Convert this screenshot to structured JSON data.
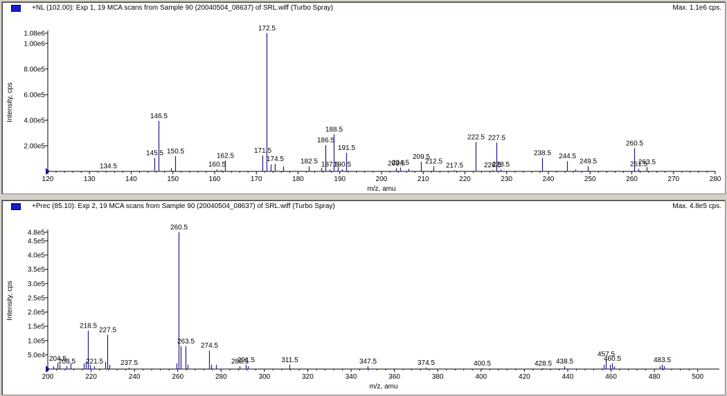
{
  "colors": {
    "peak": "#1a1a8c",
    "marker": "#1a1acf",
    "axis": "#000000",
    "background": "#ffffff"
  },
  "chart_data": [
    {
      "type": "bar",
      "title": "+NL (102.00): Exp 1, 19 MCA scans from Sample 90 (20040504_08637) of SRL.wiff (Turbo Spray)",
      "max_label": "Max. 1.1e6 cps.",
      "xlabel": "m/z, amu",
      "ylabel": "Intensity, cps",
      "xlim": [
        120,
        280
      ],
      "ylim": [
        0,
        1080000.0
      ],
      "x_ticks": [
        {
          "v": 120,
          "t": "120"
        },
        {
          "v": 130,
          "t": "130"
        },
        {
          "v": 140,
          "t": "140"
        },
        {
          "v": 150,
          "t": "150"
        },
        {
          "v": 160,
          "t": "160"
        },
        {
          "v": 170,
          "t": "170"
        },
        {
          "v": 180,
          "t": "180"
        },
        {
          "v": 190,
          "t": "190"
        },
        {
          "v": 200,
          "t": "200"
        },
        {
          "v": 210,
          "t": "210"
        },
        {
          "v": 220,
          "t": "220"
        },
        {
          "v": 230,
          "t": "230"
        },
        {
          "v": 240,
          "t": "240"
        },
        {
          "v": 250,
          "t": "250"
        },
        {
          "v": 260,
          "t": "260"
        },
        {
          "v": 270,
          "t": "270"
        },
        {
          "v": 280,
          "t": "280"
        }
      ],
      "y_ticks": [
        {
          "v": 200000,
          "t": "2.00e5"
        },
        {
          "v": 400000,
          "t": "4.00e5"
        },
        {
          "v": 600000,
          "t": "6.00e5"
        },
        {
          "v": 800000,
          "t": "8.00e5"
        },
        {
          "v": 1000000,
          "t": "1.00e6"
        },
        {
          "v": 1080000,
          "t": "1.08e6"
        }
      ],
      "peaks": [
        {
          "x": 134.5,
          "y": 3000,
          "label": "134.5"
        },
        {
          "x": 145.5,
          "y": 105000,
          "label": "145.5"
        },
        {
          "x": 146.5,
          "y": 395000,
          "label": "146.5"
        },
        {
          "x": 149.5,
          "y": 25000
        },
        {
          "x": 150.5,
          "y": 120000,
          "label": "150.5"
        },
        {
          "x": 160.5,
          "y": 15000,
          "label": "160.5"
        },
        {
          "x": 161.5,
          "y": 10000
        },
        {
          "x": 162.5,
          "y": 85000,
          "label": "162.5"
        },
        {
          "x": 171.5,
          "y": 125000,
          "label": "171.5"
        },
        {
          "x": 172.5,
          "y": 1080000,
          "label": "172.5"
        },
        {
          "x": 173.5,
          "y": 55000
        },
        {
          "x": 174.5,
          "y": 60000,
          "label": "174.5"
        },
        {
          "x": 176.5,
          "y": 40000
        },
        {
          "x": 182.5,
          "y": 40000,
          "label": "182.5"
        },
        {
          "x": 185.5,
          "y": 30000
        },
        {
          "x": 186.5,
          "y": 205000,
          "label": "186.5"
        },
        {
          "x": 187.5,
          "y": 15000,
          "label": "187.5"
        },
        {
          "x": 188.5,
          "y": 290000,
          "label": "188.5"
        },
        {
          "x": 189.5,
          "y": 35000
        },
        {
          "x": 190.5,
          "y": 15000,
          "label": "190.5"
        },
        {
          "x": 191.5,
          "y": 145000,
          "label": "191.5"
        },
        {
          "x": 203.5,
          "y": 25000,
          "label": "203.5"
        },
        {
          "x": 204.5,
          "y": 30000,
          "label": "204.5"
        },
        {
          "x": 206.5,
          "y": 20000
        },
        {
          "x": 209.5,
          "y": 75000,
          "label": "209.5"
        },
        {
          "x": 212.5,
          "y": 40000,
          "label": "212.5"
        },
        {
          "x": 217.5,
          "y": 8000,
          "label": "217.5"
        },
        {
          "x": 222.5,
          "y": 230000,
          "label": "222.5"
        },
        {
          "x": 226.5,
          "y": 10000,
          "label": "226.5"
        },
        {
          "x": 227.5,
          "y": 225000,
          "label": "227.5"
        },
        {
          "x": 228.5,
          "y": 15000,
          "label": "228.5"
        },
        {
          "x": 238.5,
          "y": 105000,
          "label": "238.5"
        },
        {
          "x": 244.5,
          "y": 80000,
          "label": "244.5"
        },
        {
          "x": 246.5,
          "y": 15000
        },
        {
          "x": 249.5,
          "y": 40000,
          "label": "249.5"
        },
        {
          "x": 260.5,
          "y": 180000,
          "label": "260.5"
        },
        {
          "x": 261.5,
          "y": 20000,
          "label": "261.5"
        },
        {
          "x": 263.5,
          "y": 35000,
          "label": "263.5"
        }
      ]
    },
    {
      "type": "bar",
      "title": "+Prec (85.10): Exp 2, 19 MCA scans from Sample 90 (20040504_08637) of SRL.wiff (Turbo Spray)",
      "max_label": "Max. 4.8e5 cps.",
      "xlabel": "m/z, amu",
      "ylabel": "Intensity, cps",
      "xlim": [
        200,
        510
      ],
      "ylim": [
        0,
        480000
      ],
      "x_ticks": [
        {
          "v": 200,
          "t": "200"
        },
        {
          "v": 220,
          "t": "220"
        },
        {
          "v": 240,
          "t": "240"
        },
        {
          "v": 260,
          "t": "260"
        },
        {
          "v": 280,
          "t": "280"
        },
        {
          "v": 300,
          "t": "300"
        },
        {
          "v": 320,
          "t": "320"
        },
        {
          "v": 340,
          "t": "340"
        },
        {
          "v": 360,
          "t": "360"
        },
        {
          "v": 380,
          "t": "380"
        },
        {
          "v": 400,
          "t": "400"
        },
        {
          "v": 420,
          "t": "420"
        },
        {
          "v": 440,
          "t": "440"
        },
        {
          "v": 460,
          "t": "460"
        },
        {
          "v": 480,
          "t": "480"
        },
        {
          "v": 500,
          "t": "500"
        }
      ],
      "y_ticks": [
        {
          "v": 50000,
          "t": "5.0e4"
        },
        {
          "v": 100000,
          "t": "1.0e5"
        },
        {
          "v": 150000,
          "t": "1.5e5"
        },
        {
          "v": 200000,
          "t": "2.0e5"
        },
        {
          "v": 250000,
          "t": "2.5e5"
        },
        {
          "v": 300000,
          "t": "3.0e5"
        },
        {
          "v": 350000,
          "t": "3.5e5"
        },
        {
          "v": 400000,
          "t": "4.0e5"
        },
        {
          "v": 450000,
          "t": "4.5e5"
        },
        {
          "v": 480000,
          "t": "4.8e5"
        }
      ],
      "peaks": [
        {
          "x": 202.5,
          "y": 10000
        },
        {
          "x": 204.5,
          "y": 20000,
          "label": "204.5"
        },
        {
          "x": 205.5,
          "y": 15000
        },
        {
          "x": 208.5,
          "y": 10000,
          "label": "208.5"
        },
        {
          "x": 210.5,
          "y": 20000
        },
        {
          "x": 216.5,
          "y": 20000
        },
        {
          "x": 217.5,
          "y": 25000
        },
        {
          "x": 218.5,
          "y": 135000,
          "label": "218.5"
        },
        {
          "x": 219.5,
          "y": 15000
        },
        {
          "x": 221.5,
          "y": 10000,
          "label": "221.5"
        },
        {
          "x": 226.5,
          "y": 25000
        },
        {
          "x": 227.5,
          "y": 120000,
          "label": "227.5"
        },
        {
          "x": 228.5,
          "y": 15000
        },
        {
          "x": 237.5,
          "y": 5000,
          "label": "237.5"
        },
        {
          "x": 259.5,
          "y": 20000
        },
        {
          "x": 260.5,
          "y": 480000,
          "label": "260.5"
        },
        {
          "x": 261.5,
          "y": 80000
        },
        {
          "x": 263.5,
          "y": 80000,
          "label": "263.5"
        },
        {
          "x": 264.5,
          "y": 15000
        },
        {
          "x": 274.5,
          "y": 65000,
          "label": "274.5"
        },
        {
          "x": 275.5,
          "y": 15000
        },
        {
          "x": 277.5,
          "y": 15000
        },
        {
          "x": 288.5,
          "y": 10000,
          "label": "288.5"
        },
        {
          "x": 291.5,
          "y": 15000,
          "label": "291.5"
        },
        {
          "x": 292.5,
          "y": 10000
        },
        {
          "x": 311.5,
          "y": 15000,
          "label": "311.5"
        },
        {
          "x": 347.5,
          "y": 10000,
          "label": "347.5"
        },
        {
          "x": 374.5,
          "y": 5000,
          "label": "374.5"
        },
        {
          "x": 400.5,
          "y": 3000,
          "label": "400.5"
        },
        {
          "x": 428.5,
          "y": 3000,
          "label": "428.5"
        },
        {
          "x": 438.5,
          "y": 10000,
          "label": "438.5"
        },
        {
          "x": 456.5,
          "y": 15000
        },
        {
          "x": 457.5,
          "y": 35000,
          "label": "457.5"
        },
        {
          "x": 459.5,
          "y": 15000
        },
        {
          "x": 460.5,
          "y": 20000,
          "label": "460.5"
        },
        {
          "x": 461.5,
          "y": 10000
        },
        {
          "x": 482.5,
          "y": 10000
        },
        {
          "x": 483.5,
          "y": 15000,
          "label": "483.5"
        },
        {
          "x": 484.5,
          "y": 10000
        }
      ]
    }
  ]
}
